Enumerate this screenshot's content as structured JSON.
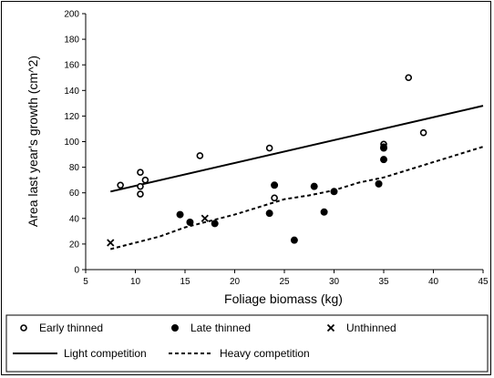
{
  "chart_data": {
    "type": "scatter",
    "xlabel": "Foliage biomass (kg)",
    "ylabel": "Area last year's growth (cm^2)",
    "xlim": [
      5,
      45
    ],
    "ylim": [
      0,
      200
    ],
    "x_ticks": [
      5,
      10,
      15,
      20,
      25,
      30,
      35,
      40,
      45
    ],
    "y_ticks": [
      0,
      20,
      40,
      60,
      80,
      100,
      120,
      140,
      160,
      180,
      200
    ],
    "grid": false,
    "legend_position": "bottom",
    "series": [
      {
        "name": "Early thinned",
        "marker": "open-circle",
        "color": "#000000",
        "points": [
          [
            8.5,
            66
          ],
          [
            10.5,
            76
          ],
          [
            10.5,
            65
          ],
          [
            10.5,
            59
          ],
          [
            11,
            70
          ],
          [
            16.5,
            89
          ],
          [
            23.5,
            95
          ],
          [
            24,
            56
          ],
          [
            35,
            98
          ],
          [
            35,
            96
          ],
          [
            37.5,
            150
          ],
          [
            39,
            107
          ]
        ]
      },
      {
        "name": "Late thinned",
        "marker": "filled-circle",
        "color": "#000000",
        "points": [
          [
            14.5,
            43
          ],
          [
            15.5,
            37
          ],
          [
            18,
            36
          ],
          [
            23.5,
            44
          ],
          [
            24,
            66
          ],
          [
            26,
            23
          ],
          [
            28,
            65
          ],
          [
            29,
            45
          ],
          [
            30,
            61
          ],
          [
            34.5,
            67
          ],
          [
            35,
            95
          ],
          [
            35,
            86
          ]
        ]
      },
      {
        "name": "Unthinned",
        "marker": "x",
        "color": "#000000",
        "points": [
          [
            7.5,
            21
          ],
          [
            17,
            40
          ]
        ]
      }
    ],
    "lines": [
      {
        "name": "Light competition",
        "style": "solid",
        "color": "#000000",
        "points": [
          [
            7.5,
            61
          ],
          [
            45,
            128
          ]
        ]
      },
      {
        "name": "Heavy competition",
        "style": "dashed",
        "color": "#000000",
        "points": [
          [
            7.5,
            16
          ],
          [
            10,
            21
          ],
          [
            12.5,
            26
          ],
          [
            15,
            33
          ],
          [
            17.5,
            38
          ],
          [
            20,
            43
          ],
          [
            22.5,
            49
          ],
          [
            25,
            55
          ],
          [
            27.5,
            58
          ],
          [
            30,
            62
          ],
          [
            32.5,
            68
          ],
          [
            35,
            72
          ],
          [
            37.5,
            78
          ],
          [
            40,
            84
          ],
          [
            42.5,
            90
          ],
          [
            45,
            96
          ]
        ]
      }
    ]
  }
}
